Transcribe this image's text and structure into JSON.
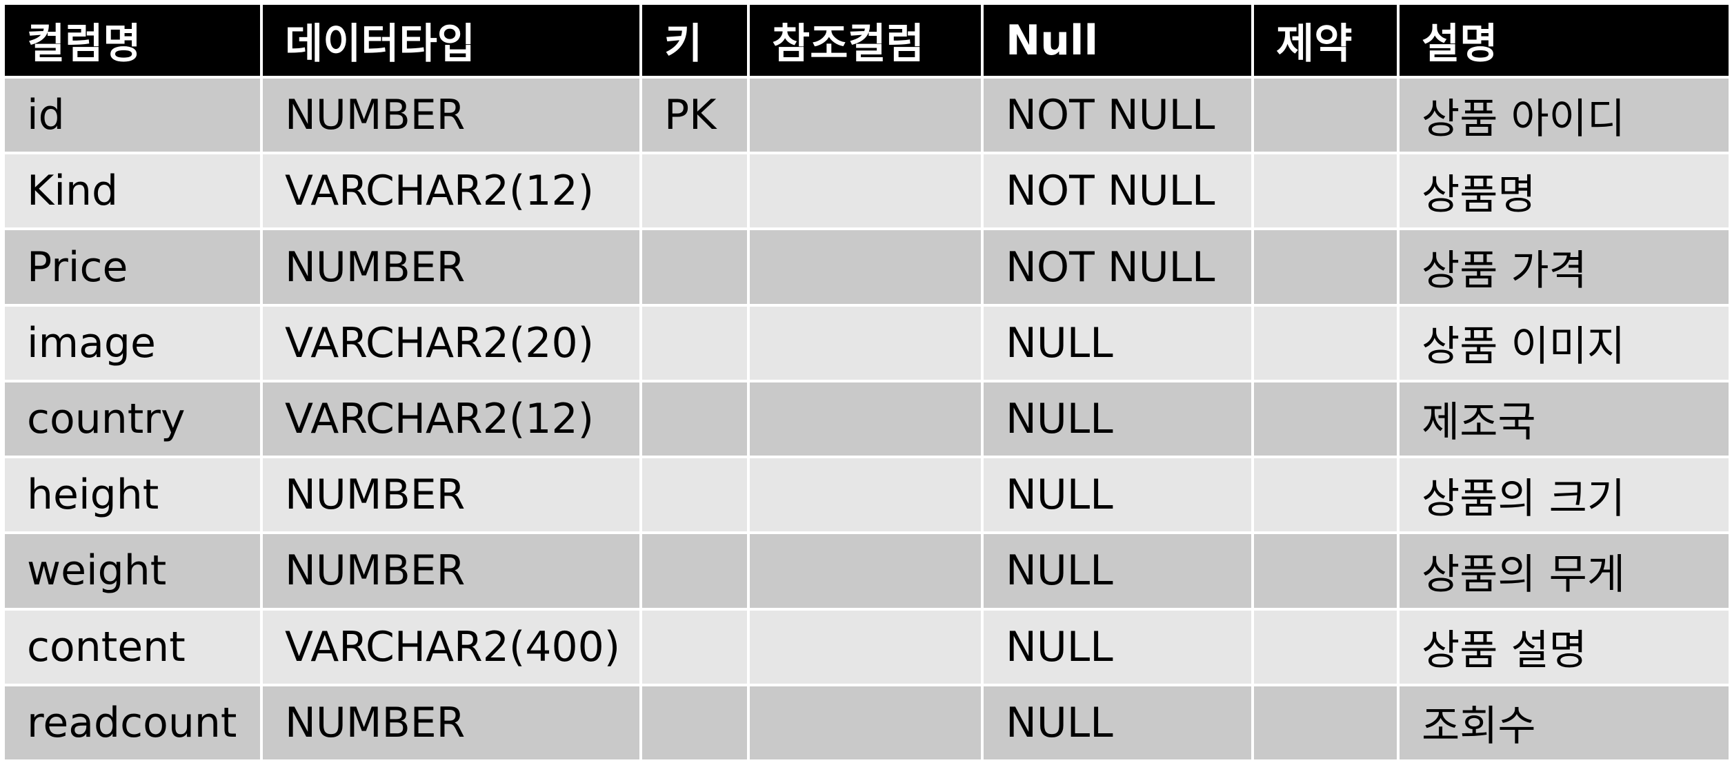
{
  "table": {
    "headers": [
      "컬럼명",
      "데이터타입",
      "키",
      "참조컬럼",
      "Null",
      "제약",
      "설명"
    ],
    "rows": [
      [
        "id",
        "NUMBER",
        "PK",
        "",
        "NOT NULL",
        "",
        "상품 아이디"
      ],
      [
        "Kind",
        "VARCHAR2(12)",
        "",
        "",
        "NOT NULL",
        "",
        "상품명"
      ],
      [
        "Price",
        "NUMBER",
        "",
        "",
        "NOT NULL",
        "",
        "상품 가격"
      ],
      [
        "image",
        "VARCHAR2(20)",
        "",
        "",
        "NULL",
        "",
        "상품 이미지"
      ],
      [
        "country",
        "VARCHAR2(12)",
        "",
        "",
        "NULL",
        "",
        "제조국"
      ],
      [
        "height",
        "NUMBER",
        "",
        "",
        "NULL",
        "",
        "상품의 크기"
      ],
      [
        "weight",
        "NUMBER",
        "",
        "",
        "NULL",
        "",
        "상품의 무게"
      ],
      [
        "content",
        "VARCHAR2(400)",
        "",
        "",
        "NULL",
        "",
        "상품 설명"
      ],
      [
        "readcount",
        "NUMBER",
        "",
        "",
        "NULL",
        "",
        "조회수"
      ]
    ]
  },
  "colors": {
    "header_bg": "#000000",
    "header_text": "#ffffff",
    "row_dark": "#c9c9c9",
    "row_light": "#e6e6e6"
  }
}
